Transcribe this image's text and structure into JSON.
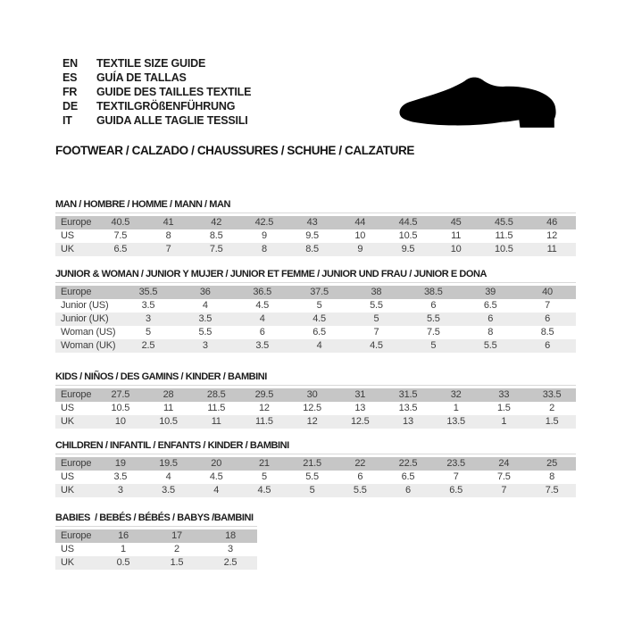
{
  "colors": {
    "page_bg": "#ffffff",
    "header_row_bg": "#c6c6c6",
    "alt_row_bg": "#ececec",
    "cell_text": "#3d3d3d",
    "title_text": "#1c1c1c",
    "rule_line": "#d8d8d8",
    "shoe_fill": "#000000"
  },
  "language_guide": {
    "rows": [
      {
        "code": "EN",
        "label": "TEXTILE SIZE GUIDE"
      },
      {
        "code": "ES",
        "label": "GUÍA DE TALLAS"
      },
      {
        "code": "FR",
        "label": "GUIDE DES TAILLES TEXTILE"
      },
      {
        "code": "DE",
        "label": "TEXTILGRÖßENFÜHRUNG"
      },
      {
        "code": "IT",
        "label": "GUIDA ALLE TAGLIE TESSILI"
      }
    ]
  },
  "category_heading": "FOOTWEAR / CALZADO / CHAUSSURES / SCHUHE / CALZATURE",
  "shoe_icon": "dress-shoe-silhouette",
  "tables": [
    {
      "id": "man",
      "title": "MAN / HOMBRE / HOMME / MANN / MAN",
      "rows": [
        {
          "label": "Europe",
          "values": [
            "40.5",
            "41",
            "42",
            "42.5",
            "43",
            "44",
            "44.5",
            "45",
            "45.5",
            "46"
          ]
        },
        {
          "label": "US",
          "values": [
            "7.5",
            "8",
            "8.5",
            "9",
            "9.5",
            "10",
            "10.5",
            "11",
            "11.5",
            "12"
          ]
        },
        {
          "label": "UK",
          "values": [
            "6.5",
            "7",
            "7.5",
            "8",
            "8.5",
            "9",
            "9.5",
            "10",
            "10.5",
            "11"
          ]
        }
      ]
    },
    {
      "id": "junior-woman",
      "title": "JUNIOR & WOMAN / JUNIOR Y MUJER / JUNIOR ET FEMME / JUNIOR UND FRAU / JUNIOR E DONA",
      "rows": [
        {
          "label": "Europe",
          "values": [
            "35.5",
            "36",
            "36.5",
            "37.5",
            "38",
            "38.5",
            "39",
            "40"
          ]
        },
        {
          "label": "Junior (US)",
          "values": [
            "3.5",
            "4",
            "4.5",
            "5",
            "5.5",
            "6",
            "6.5",
            "7"
          ]
        },
        {
          "label": "Junior (UK)",
          "values": [
            "3",
            "3.5",
            "4",
            "4.5",
            "5",
            "5.5",
            "6",
            "6"
          ]
        },
        {
          "label": "Woman (US)",
          "values": [
            "5",
            "5.5",
            "6",
            "6.5",
            "7",
            "7.5",
            "8",
            "8.5"
          ]
        },
        {
          "label": "Woman (UK)",
          "values": [
            "2.5",
            "3",
            "3.5",
            "4",
            "4.5",
            "5",
            "5.5",
            "6"
          ]
        }
      ]
    },
    {
      "id": "kids",
      "title": "KIDS / NIÑOS / DES GAMINS / KINDER / BAMBINI",
      "rows": [
        {
          "label": "Europe",
          "values": [
            "27.5",
            "28",
            "28.5",
            "29.5",
            "30",
            "31",
            "31.5",
            "32",
            "33",
            "33.5"
          ]
        },
        {
          "label": "US",
          "values": [
            "10.5",
            "11",
            "11.5",
            "12",
            "12.5",
            "13",
            "13.5",
            "1",
            "1.5",
            "2"
          ]
        },
        {
          "label": "UK",
          "values": [
            "10",
            "10.5",
            "11",
            "11.5",
            "12",
            "12.5",
            "13",
            "13.5",
            "1",
            "1.5"
          ]
        }
      ]
    },
    {
      "id": "children",
      "title": "CHILDREN / INFANTIL / ENFANTS / KINDER / BAMBINI",
      "rows": [
        {
          "label": "Europe",
          "values": [
            "19",
            "19.5",
            "20",
            "21",
            "21.5",
            "22",
            "22.5",
            "23.5",
            "24",
            "25"
          ]
        },
        {
          "label": "US",
          "values": [
            "3.5",
            "4",
            "4.5",
            "5",
            "5.5",
            "6",
            "6.5",
            "7",
            "7.5",
            "8"
          ]
        },
        {
          "label": "UK",
          "values": [
            "3",
            "3.5",
            "4",
            "4.5",
            "5",
            "5.5",
            "6",
            "6.5",
            "7",
            "7.5"
          ]
        }
      ]
    },
    {
      "id": "babies",
      "title": "BABIES  / BEBÉS / BÉBÉS / BABYS /BAMBINI",
      "rows": [
        {
          "label": "Europe",
          "values": [
            "16",
            "17",
            "18"
          ]
        },
        {
          "label": "US",
          "values": [
            "1",
            "2",
            "3"
          ]
        },
        {
          "label": "UK",
          "values": [
            "0.5",
            "1.5",
            "2.5"
          ]
        }
      ]
    }
  ]
}
